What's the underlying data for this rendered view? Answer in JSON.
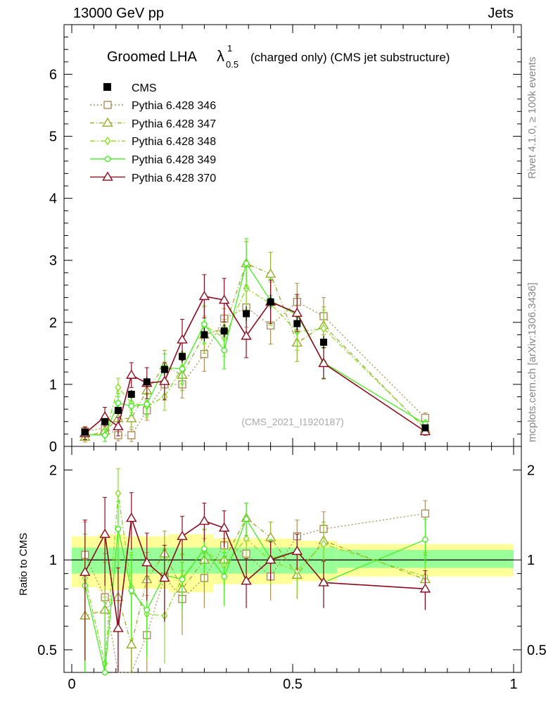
{
  "header": {
    "left": "13000 GeV pp",
    "right": "Jets"
  },
  "side": {
    "rivet": "Rivet 4.1.0, ≥ 100k events",
    "mcplots": "mcplots.cern.ch [arXiv:1306.3436]"
  },
  "watermark": "(CMS_2021_I1920187)",
  "title": {
    "main": "Groomed LHA",
    "lambda": "λ",
    "sup": "1",
    "sub": "0.5",
    "rest": "(charged only) (CMS jet substructure)"
  },
  "colors": {
    "cms": "#000000",
    "p346": "#b08d57",
    "p347": "#9aaa2a",
    "p348": "#88dd22",
    "p349": "#44ee22",
    "p370": "#8b0a1e",
    "band_outer": "#ffff99",
    "band_inner": "#99ff99"
  },
  "chart_data": {
    "type": "line",
    "x": [
      0.03,
      0.075,
      0.105,
      0.135,
      0.17,
      0.21,
      0.25,
      0.3,
      0.345,
      0.395,
      0.45,
      0.51,
      0.57,
      0.8
    ],
    "ylim_main": [
      0,
      6.8
    ],
    "yticks_main": [
      "0",
      "1",
      "2",
      "3",
      "4",
      "5",
      "6"
    ],
    "ylim_ratio": [
      0.42,
      2.4
    ],
    "yticks_ratio": [
      "0.5",
      "1",
      "2"
    ],
    "ylabel_ratio": "Ratio to CMS",
    "xlim": [
      0,
      1
    ],
    "xticks": [
      "0",
      "0.5",
      "1"
    ],
    "cms": {
      "name": "CMS",
      "values": [
        0.23,
        0.4,
        0.58,
        0.84,
        1.04,
        1.24,
        1.45,
        1.8,
        1.86,
        2.14,
        2.33,
        1.98,
        1.68,
        0.3
      ],
      "errors": [
        0.03,
        0.05,
        0.06,
        0.07,
        0.08,
        0.09,
        0.1,
        0.11,
        0.11,
        0.12,
        0.12,
        0.11,
        0.1,
        0.03
      ]
    },
    "ratio_band_outer": [
      {
        "x": [
          0.0,
          0.06
        ],
        "lo": 0.81,
        "hi": 1.2
      },
      {
        "x": [
          0.06,
          0.12
        ],
        "lo": 0.79,
        "hi": 1.22
      },
      {
        "x": [
          0.12,
          0.22
        ],
        "lo": 0.8,
        "hi": 1.2
      },
      {
        "x": [
          0.22,
          0.32
        ],
        "lo": 0.78,
        "hi": 1.22
      },
      {
        "x": [
          0.32,
          0.5
        ],
        "lo": 0.83,
        "hi": 1.18
      },
      {
        "x": [
          0.5,
          0.6
        ],
        "lo": 0.85,
        "hi": 1.16
      },
      {
        "x": [
          0.6,
          1.0
        ],
        "lo": 0.88,
        "hi": 1.13
      }
    ],
    "ratio_band_inner": [
      {
        "x": [
          0.0,
          0.6
        ],
        "lo": 0.9,
        "hi": 1.1
      },
      {
        "x": [
          0.6,
          1.0
        ],
        "lo": 0.94,
        "hi": 1.08
      }
    ],
    "series": [
      {
        "name": "Pythia 6.428 346",
        "color_key": "p346",
        "marker": "square",
        "dash": "2,3",
        "values": [
          0.24,
          0.3,
          0.18,
          0.18,
          0.58,
          1.0,
          1.0,
          1.49,
          2.06,
          2.24,
          1.95,
          2.33,
          2.1,
          0.46
        ],
        "errors": [
          0.08,
          0.1,
          0.09,
          0.1,
          0.16,
          0.2,
          0.22,
          0.28,
          0.3,
          0.32,
          0.3,
          0.3,
          0.3,
          0.08
        ],
        "ratio": [
          1.04,
          0.75,
          0.31,
          0.21,
          0.56,
          0.88,
          0.74,
          0.87,
          1.12,
          1.05,
          0.88,
          1.2,
          1.27,
          1.43
        ],
        "ratio_err": [
          0.3,
          0.3,
          0.3,
          0.3,
          0.2,
          0.2,
          0.18,
          0.18,
          0.18,
          0.16,
          0.15,
          0.16,
          0.18,
          0.15
        ]
      },
      {
        "name": "Pythia 6.428 347",
        "color_key": "p347",
        "marker": "triangle",
        "dash": "6,3,1,3",
        "values": [
          0.15,
          0.25,
          0.45,
          0.45,
          0.9,
          1.3,
          1.15,
          1.8,
          1.9,
          2.95,
          2.78,
          1.67,
          1.95,
          0.28
        ],
        "errors": [
          0.08,
          0.1,
          0.12,
          0.14,
          0.18,
          0.25,
          0.25,
          0.3,
          0.32,
          0.35,
          0.35,
          0.3,
          0.3,
          0.07
        ],
        "ratio": [
          0.65,
          0.68,
          0.75,
          0.52,
          0.86,
          1.05,
          0.8,
          1.0,
          1.0,
          1.38,
          1.19,
          0.89,
          1.16,
          0.86
        ],
        "ratio_err": [
          0.35,
          0.3,
          0.25,
          0.25,
          0.2,
          0.2,
          0.18,
          0.18,
          0.18,
          0.17,
          0.15,
          0.15,
          0.18,
          0.18
        ]
      },
      {
        "name": "Pythia 6.428 348",
        "color_key": "p348",
        "marker": "diamond",
        "dash": "7,3,2,3",
        "values": [
          0.2,
          0.18,
          0.95,
          0.7,
          0.65,
          0.8,
          1.27,
          1.95,
          1.75,
          2.55,
          2.3,
          1.85,
          1.9,
          0.29
        ],
        "errors": [
          0.08,
          0.1,
          0.15,
          0.15,
          0.18,
          0.22,
          0.25,
          0.3,
          0.3,
          0.35,
          0.35,
          0.3,
          0.3,
          0.07
        ],
        "ratio": [
          0.87,
          0.45,
          1.67,
          0.81,
          0.66,
          0.65,
          0.87,
          1.08,
          0.96,
          1.18,
          0.99,
          0.92,
          1.13,
          0.88
        ],
        "ratio_err": [
          0.35,
          0.3,
          0.35,
          0.25,
          0.2,
          0.2,
          0.18,
          0.18,
          0.18,
          0.18,
          0.16,
          0.15,
          0.18,
          0.18
        ]
      },
      {
        "name": "Pythia 6.428 349",
        "color_key": "p349",
        "marker": "circle",
        "dash": "",
        "values": [
          0.19,
          0.18,
          0.7,
          0.65,
          0.68,
          1.27,
          1.25,
          1.97,
          1.55,
          2.95,
          2.35,
          2.12,
          1.35,
          0.36
        ],
        "errors": [
          0.08,
          0.1,
          0.15,
          0.15,
          0.18,
          0.22,
          0.25,
          0.3,
          0.3,
          0.4,
          0.35,
          0.3,
          0.25,
          0.07
        ],
        "ratio": [
          0.82,
          0.42,
          1.27,
          0.79,
          0.68,
          0.89,
          0.86,
          1.09,
          0.88,
          1.37,
          1.01,
          1.07,
          0.84,
          1.17
        ],
        "ratio_err": [
          0.4,
          0.3,
          0.3,
          0.25,
          0.2,
          0.2,
          0.18,
          0.18,
          0.18,
          0.18,
          0.16,
          0.15,
          0.15,
          0.2
        ]
      },
      {
        "name": "Pythia 6.428 370",
        "color_key": "p370",
        "marker": "triangle",
        "dash": "",
        "values": [
          0.21,
          0.48,
          0.32,
          1.15,
          1.02,
          1.05,
          1.72,
          2.42,
          2.36,
          1.78,
          2.33,
          2.15,
          1.34,
          0.24
        ],
        "errors": [
          0.1,
          0.15,
          0.15,
          0.2,
          0.25,
          0.3,
          0.33,
          0.35,
          0.35,
          0.35,
          0.35,
          0.3,
          0.25,
          0.06
        ],
        "ratio": [
          0.91,
          1.22,
          0.59,
          1.38,
          0.98,
          0.87,
          1.2,
          1.35,
          1.28,
          0.85,
          1.0,
          1.07,
          0.84,
          0.8
        ],
        "ratio_err": [
          0.45,
          0.4,
          0.35,
          0.3,
          0.25,
          0.25,
          0.2,
          0.2,
          0.18,
          0.16,
          0.15,
          0.15,
          0.15,
          0.12
        ]
      }
    ]
  }
}
